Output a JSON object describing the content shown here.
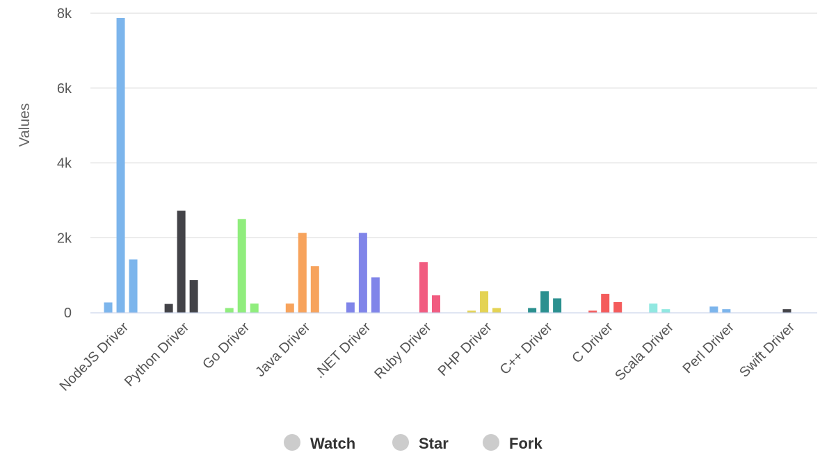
{
  "chart_data": {
    "type": "bar",
    "ylabel": "Values",
    "xlabel": "",
    "ylim": [
      0,
      8000
    ],
    "yticks": [
      {
        "value": 0,
        "label": "0"
      },
      {
        "value": 2000,
        "label": "2k"
      },
      {
        "value": 4000,
        "label": "4k"
      },
      {
        "value": 6000,
        "label": "6k"
      },
      {
        "value": 8000,
        "label": "8k"
      }
    ],
    "grid": true,
    "legend_position": "bottom-center",
    "categories": [
      "NodeJS Driver",
      "Python Driver",
      "Go Driver",
      "Java Driver",
      ".NET Driver",
      "Ruby Driver",
      "PHP Driver",
      "C++ Driver",
      "C Driver",
      "Scala Driver",
      "Perl Driver",
      "Swift Driver"
    ],
    "category_colors": [
      "#7cb5ec",
      "#434348",
      "#90ed7d",
      "#f7a35c",
      "#8085e9",
      "#f15c80",
      "#e4d354",
      "#2b908f",
      "#f45b5b",
      "#91e8e1",
      "#7cb5ec",
      "#434348"
    ],
    "series": [
      {
        "name": "Watch",
        "values": [
          270,
          230,
          120,
          240,
          270,
          0,
          50,
          120,
          50,
          240,
          160,
          0
        ]
      },
      {
        "name": "Star",
        "values": [
          7870,
          2720,
          2500,
          2130,
          2130,
          1350,
          570,
          570,
          500,
          90,
          90,
          90
        ]
      },
      {
        "name": "Fork",
        "values": [
          1420,
          870,
          240,
          1240,
          940,
          460,
          120,
          380,
          280,
          0,
          0,
          0
        ]
      }
    ],
    "legend": {
      "items": [
        "Watch",
        "Star",
        "Fork"
      ],
      "marker_color": "#cccccc"
    },
    "colors": {
      "grid": "#e6e6e6",
      "axis": "#ccd6eb"
    }
  }
}
